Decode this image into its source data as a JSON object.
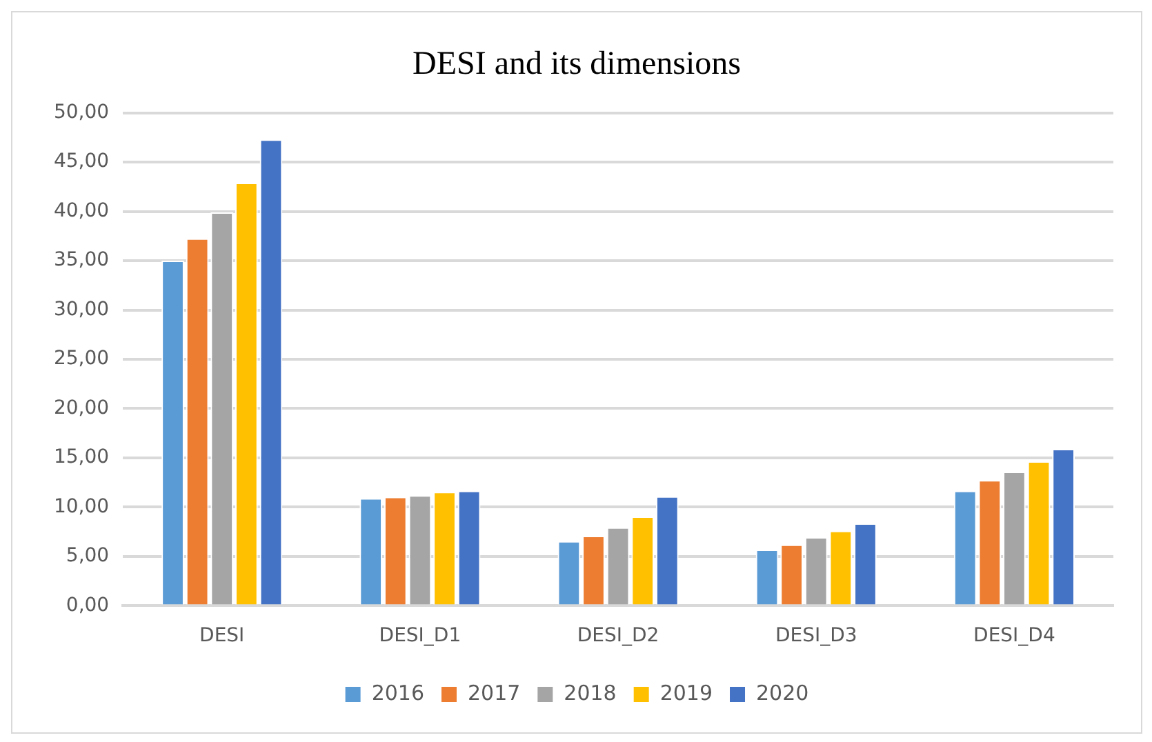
{
  "chart_data": {
    "type": "bar",
    "title": "DESI and its dimensions",
    "categories": [
      "DESI",
      "DESI_D1",
      "DESI_D2",
      "DESI_D3",
      "DESI_D4"
    ],
    "series": [
      {
        "name": "2016",
        "color": "#5b9bd5",
        "values": [
          35.0,
          10.9,
          6.55,
          5.7,
          11.65
        ]
      },
      {
        "name": "2017",
        "color": "#ed7d31",
        "values": [
          37.25,
          11.05,
          7.1,
          6.2,
          12.75
        ]
      },
      {
        "name": "2018",
        "color": "#a5a5a5",
        "values": [
          39.9,
          11.2,
          7.95,
          6.95,
          13.6
        ]
      },
      {
        "name": "2019",
        "color": "#ffc000",
        "values": [
          42.9,
          11.55,
          9.05,
          7.6,
          14.65
        ]
      },
      {
        "name": "2020",
        "color": "#4472c4",
        "values": [
          47.3,
          11.65,
          11.1,
          8.35,
          15.9
        ]
      }
    ],
    "ylim": [
      0,
      50
    ],
    "yticks": [
      {
        "value": 0,
        "label": "0,00"
      },
      {
        "value": 5,
        "label": "5,00"
      },
      {
        "value": 10,
        "label": "10,00"
      },
      {
        "value": 15,
        "label": "15,00"
      },
      {
        "value": 20,
        "label": "20,00"
      },
      {
        "value": 25,
        "label": "25,00"
      },
      {
        "value": 30,
        "label": "30,00"
      },
      {
        "value": 35,
        "label": "35,00"
      },
      {
        "value": 40,
        "label": "40,00"
      },
      {
        "value": 45,
        "label": "45,00"
      },
      {
        "value": 50,
        "label": "50,00"
      }
    ],
    "grid": "y",
    "legend": "bottom"
  }
}
